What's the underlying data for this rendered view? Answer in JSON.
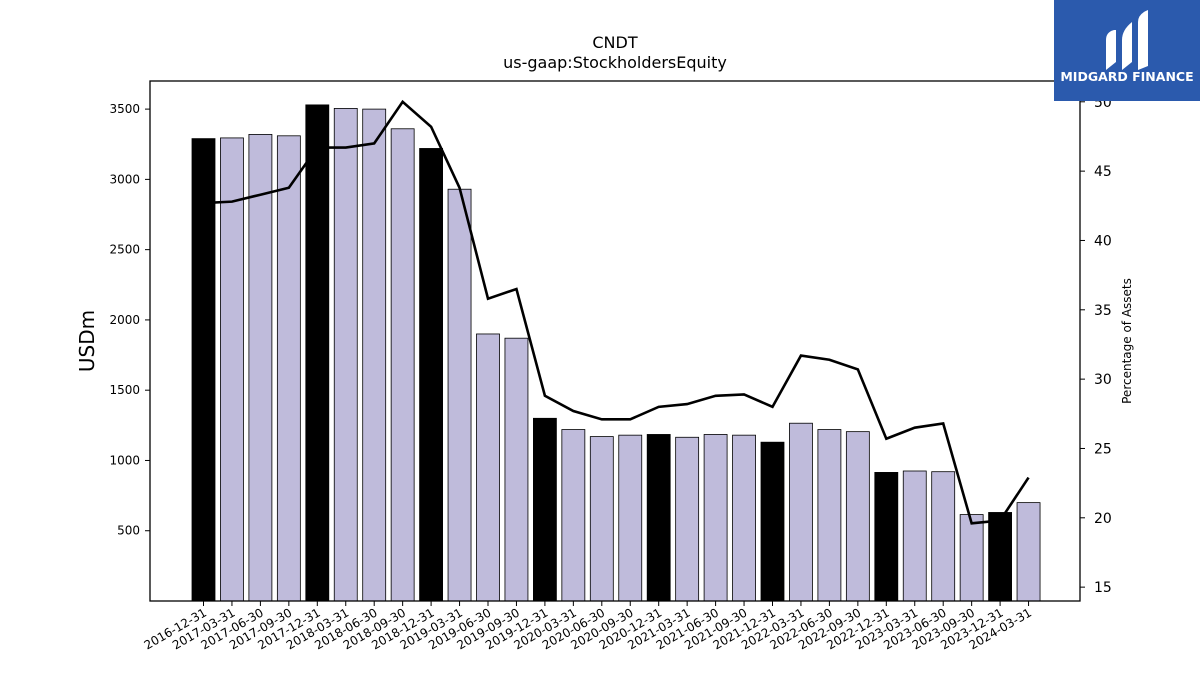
{
  "chart_data": {
    "type": "bar",
    "title": "CNDT",
    "subtitle": "us-gaap:StockholdersEquity",
    "ylabel": "USDm",
    "y2label": "Percentage of Assets",
    "ylim": [
      0,
      3700
    ],
    "y2lim": [
      14,
      51.5
    ],
    "yticks": [
      500,
      1000,
      1500,
      2000,
      2500,
      3000,
      3500
    ],
    "y2ticks": [
      15,
      20,
      25,
      30,
      35,
      40,
      45,
      50
    ],
    "categories": [
      "2016-12-31",
      "2017-03-31",
      "2017-06-30",
      "2017-09-30",
      "2017-12-31",
      "2018-03-31",
      "2018-06-30",
      "2018-09-30",
      "2018-12-31",
      "2019-03-31",
      "2019-06-30",
      "2019-09-30",
      "2019-12-31",
      "2020-03-31",
      "2020-06-30",
      "2020-09-30",
      "2020-12-31",
      "2021-03-31",
      "2021-06-30",
      "2021-09-30",
      "2021-12-31",
      "2022-03-31",
      "2022-06-30",
      "2022-09-30",
      "2022-12-31",
      "2023-03-31",
      "2023-06-30",
      "2023-09-30",
      "2023-12-31",
      "2024-03-31"
    ],
    "series": [
      {
        "type": "bar",
        "values": [
          3290,
          3295,
          3320,
          3310,
          3530,
          3505,
          3500,
          3360,
          3220,
          2930,
          1900,
          1870,
          1300,
          1220,
          1170,
          1180,
          1185,
          1165,
          1185,
          1180,
          1130,
          1265,
          1220,
          1205,
          915,
          925,
          920,
          615,
          630,
          700
        ]
      },
      {
        "type": "line",
        "axis": "right",
        "values": [
          42.7,
          42.8,
          43.3,
          43.8,
          46.7,
          46.7,
          47.0,
          50.0,
          48.2,
          43.8,
          35.8,
          36.5,
          28.8,
          27.7,
          27.1,
          27.1,
          28.0,
          28.2,
          28.8,
          28.9,
          28.0,
          31.7,
          31.4,
          30.7,
          25.7,
          26.5,
          26.8,
          19.6,
          19.8,
          22.9
        ]
      }
    ],
    "highlight_color": "#000000",
    "bar_color": "#bfbbdb",
    "line_color": "#000000",
    "grid": false,
    "legend": "none"
  },
  "logo": {
    "text": "MIDGARD FINANCE",
    "bg_color": "#2b5aad",
    "icon": "midgard-logo-icon"
  }
}
